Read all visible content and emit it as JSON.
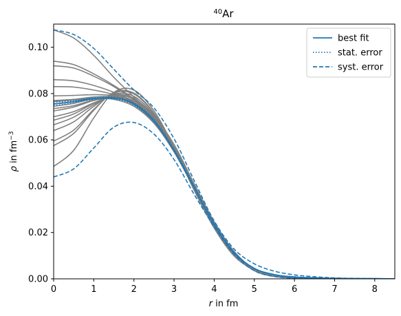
{
  "chart_data": {
    "type": "line",
    "title_sup": "40",
    "title_main": "Ar",
    "xlabel": "r in fm",
    "ylabel": "ρ in fm⁻³",
    "xlim": [
      0,
      8.5
    ],
    "ylim": [
      0,
      0.11
    ],
    "x_ticks": [
      0,
      1,
      2,
      3,
      4,
      5,
      6,
      7,
      8
    ],
    "y_ticks": [
      0.0,
      0.02,
      0.04,
      0.06,
      0.08,
      0.1
    ],
    "y_tick_labels": [
      "0.00",
      "0.02",
      "0.04",
      "0.06",
      "0.08",
      "0.10"
    ],
    "legend_position": "top-right",
    "legend": [
      {
        "label": "best fit",
        "style": "solid"
      },
      {
        "label": "stat. error",
        "style": "dotted"
      },
      {
        "label": "syst. error",
        "style": "dashed"
      }
    ],
    "colors": {
      "primary": "#1f77b4",
      "ensemble": "#808080"
    },
    "best_fit": {
      "x": [
        0,
        0.5,
        1,
        1.5,
        2,
        2.5,
        3,
        3.5,
        4,
        4.5,
        5,
        5.5,
        6,
        6.5,
        7,
        7.5,
        8,
        8.5
      ],
      "y": [
        0.0755,
        0.0765,
        0.0778,
        0.078,
        0.0755,
        0.0682,
        0.0555,
        0.0395,
        0.0235,
        0.0112,
        0.0045,
        0.0018,
        0.0008,
        0.0004,
        0.0002,
        0.0001,
        0.0001,
        0.0
      ]
    },
    "stat_error_lower": {
      "x": [
        0,
        0.5,
        1,
        1.5,
        2,
        2.5,
        3,
        3.5,
        4,
        4.5,
        5,
        5.5,
        6,
        6.5,
        7,
        7.5,
        8,
        8.5
      ],
      "y": [
        0.0748,
        0.076,
        0.0774,
        0.0776,
        0.075,
        0.0677,
        0.055,
        0.039,
        0.0231,
        0.011,
        0.0044,
        0.0017,
        0.0007,
        0.0003,
        0.0002,
        0.0001,
        0.0,
        0.0
      ]
    },
    "stat_error_upper": {
      "x": [
        0,
        0.5,
        1,
        1.5,
        2,
        2.5,
        3,
        3.5,
        4,
        4.5,
        5,
        5.5,
        6,
        6.5,
        7,
        7.5,
        8,
        8.5
      ],
      "y": [
        0.0762,
        0.077,
        0.0782,
        0.0784,
        0.076,
        0.0687,
        0.056,
        0.04,
        0.0239,
        0.0114,
        0.0046,
        0.0019,
        0.0009,
        0.0005,
        0.0003,
        0.0001,
        0.0001,
        0.0
      ]
    },
    "syst_error_upper": {
      "x": [
        0,
        0.5,
        1,
        1.5,
        2,
        2.5,
        3,
        3.5,
        4,
        4.5,
        5,
        5.5,
        6,
        6.5,
        7,
        7.5,
        8,
        8.5
      ],
      "y": [
        0.1075,
        0.1055,
        0.0995,
        0.0905,
        0.0815,
        0.0738,
        0.0605,
        0.0425,
        0.025,
        0.0128,
        0.0065,
        0.0033,
        0.0017,
        0.0009,
        0.0004,
        0.0002,
        0.0001,
        0.0
      ]
    },
    "syst_error_lower": {
      "x": [
        0,
        0.5,
        1,
        1.5,
        2,
        2.5,
        3,
        3.5,
        4,
        4.5,
        5,
        5.5,
        6,
        6.5,
        7,
        7.5,
        8,
        8.5
      ],
      "y": [
        0.044,
        0.0475,
        0.0565,
        0.0655,
        0.0675,
        0.0625,
        0.0515,
        0.0365,
        0.0225,
        0.0105,
        0.0035,
        0.001,
        0.0003,
        0.0001,
        0.0,
        0.0,
        0.0,
        0.0
      ]
    },
    "ensemble": [
      {
        "x": [
          0,
          0.5,
          1,
          1.5,
          2,
          2.5,
          3,
          3.5,
          4,
          4.5,
          5,
          5.5,
          6,
          6.5,
          7
        ],
        "y": [
          0.1075,
          0.104,
          0.0965,
          0.087,
          0.0785,
          0.0705,
          0.058,
          0.041,
          0.024,
          0.0105,
          0.0035,
          0.001,
          0.0003,
          0.0001,
          0.0
        ]
      },
      {
        "x": [
          0,
          0.5,
          1,
          1.5,
          2,
          2.5,
          3,
          3.5,
          4,
          4.5,
          5,
          5.5,
          6,
          6.5,
          7
        ],
        "y": [
          0.094,
          0.0925,
          0.0885,
          0.0835,
          0.0775,
          0.069,
          0.057,
          0.041,
          0.0245,
          0.0115,
          0.0042,
          0.0014,
          0.0004,
          0.0001,
          0.0
        ]
      },
      {
        "x": [
          0,
          0.5,
          1,
          1.5,
          2,
          2.5,
          3,
          3.5,
          4,
          4.5,
          5,
          5.5,
          6,
          6.5,
          7
        ],
        "y": [
          0.092,
          0.091,
          0.0875,
          0.083,
          0.0772,
          0.0688,
          0.0568,
          0.0408,
          0.0244,
          0.0114,
          0.0041,
          0.0013,
          0.0004,
          0.0001,
          0.0
        ]
      },
      {
        "x": [
          0,
          0.5,
          1,
          1.5,
          2,
          2.5,
          3,
          3.5,
          4,
          4.5,
          5,
          5.5,
          6,
          6.5,
          7
        ],
        "y": [
          0.086,
          0.0855,
          0.0835,
          0.0805,
          0.0762,
          0.0684,
          0.0566,
          0.0407,
          0.0243,
          0.0113,
          0.004,
          0.0013,
          0.0004,
          0.0001,
          0.0
        ]
      },
      {
        "x": [
          0,
          0.5,
          1,
          1.5,
          2,
          2.5,
          3,
          3.5,
          4,
          4.5,
          5,
          5.5,
          6,
          6.5,
          7
        ],
        "y": [
          0.083,
          0.0828,
          0.0815,
          0.0795,
          0.0757,
          0.0682,
          0.0565,
          0.0406,
          0.0242,
          0.0112,
          0.004,
          0.0013,
          0.0004,
          0.0001,
          0.0
        ]
      },
      {
        "x": [
          0,
          0.5,
          1,
          1.5,
          2,
          2.5,
          3,
          3.5,
          4,
          4.5,
          5,
          5.5,
          6,
          6.5,
          7
        ],
        "y": [
          0.079,
          0.0792,
          0.0795,
          0.079,
          0.0758,
          0.0684,
          0.0562,
          0.0401,
          0.0239,
          0.0111,
          0.004,
          0.0013,
          0.0004,
          0.0001,
          0.0
        ]
      },
      {
        "x": [
          0,
          0.5,
          1,
          1.5,
          2,
          2.5,
          3,
          3.5,
          4,
          4.5,
          5,
          5.5,
          6,
          6.5,
          7
        ],
        "y": [
          0.077,
          0.0775,
          0.0785,
          0.0785,
          0.0756,
          0.0683,
          0.0558,
          0.0398,
          0.0237,
          0.011,
          0.004,
          0.0013,
          0.0004,
          0.0001,
          0.0
        ]
      },
      {
        "x": [
          0,
          0.5,
          1,
          1.5,
          2,
          2.5,
          3,
          3.5,
          4,
          4.5,
          5,
          5.5,
          6,
          6.5,
          7
        ],
        "y": [
          0.0735,
          0.0748,
          0.0772,
          0.0782,
          0.0758,
          0.0682,
          0.0552,
          0.039,
          0.0232,
          0.011,
          0.0043,
          0.0014,
          0.0004,
          0.0001,
          0.0
        ]
      },
      {
        "x": [
          0,
          0.5,
          1,
          1.5,
          2,
          2.5,
          3,
          3.5,
          4,
          4.5,
          5,
          5.5,
          6,
          6.5,
          7
        ],
        "y": [
          0.0725,
          0.0742,
          0.077,
          0.0785,
          0.0762,
          0.0686,
          0.0554,
          0.039,
          0.023,
          0.0107,
          0.0041,
          0.0013,
          0.0004,
          0.0001,
          0.0
        ]
      },
      {
        "x": [
          0,
          0.5,
          1,
          1.5,
          2,
          2.5,
          3,
          3.5,
          4,
          4.5,
          5,
          5.5,
          6,
          6.5,
          7
        ],
        "y": [
          0.07,
          0.0722,
          0.076,
          0.0788,
          0.0768,
          0.069,
          0.0555,
          0.039,
          0.0228,
          0.0105,
          0.004,
          0.0013,
          0.0004,
          0.0001,
          0.0
        ]
      },
      {
        "x": [
          0,
          0.5,
          1,
          1.5,
          2,
          2.5,
          3,
          3.5,
          4,
          4.5,
          5,
          5.5,
          6,
          6.5,
          7
        ],
        "y": [
          0.0685,
          0.0712,
          0.0758,
          0.0792,
          0.0775,
          0.0695,
          0.0556,
          0.0388,
          0.0226,
          0.0104,
          0.004,
          0.0013,
          0.0004,
          0.0001,
          0.0
        ]
      },
      {
        "x": [
          0,
          0.5,
          1,
          1.5,
          2,
          2.5,
          3,
          3.5,
          4,
          4.5,
          5,
          5.5,
          6,
          6.5,
          7
        ],
        "y": [
          0.0665,
          0.0698,
          0.0752,
          0.0795,
          0.078,
          0.0698,
          0.0557,
          0.0387,
          0.0225,
          0.0103,
          0.004,
          0.0013,
          0.0004,
          0.0001,
          0.0
        ]
      },
      {
        "x": [
          0,
          0.5,
          1,
          1.5,
          2,
          2.5,
          3,
          3.5,
          4,
          4.5,
          5,
          5.5,
          6,
          6.5,
          7
        ],
        "y": [
          0.064,
          0.0678,
          0.0745,
          0.0798,
          0.0788,
          0.0705,
          0.056,
          0.0386,
          0.0223,
          0.0102,
          0.004,
          0.0013,
          0.0004,
          0.0001,
          0.0
        ]
      },
      {
        "x": [
          0,
          0.5,
          1,
          1.5,
          2,
          2.5,
          3,
          3.5,
          4,
          4.5,
          5,
          5.5,
          6,
          6.5,
          7
        ],
        "y": [
          0.0595,
          0.0642,
          0.0732,
          0.0802,
          0.0798,
          0.0712,
          0.0562,
          0.0385,
          0.0222,
          0.0101,
          0.004,
          0.0013,
          0.0004,
          0.0001,
          0.0
        ]
      },
      {
        "x": [
          0,
          0.5,
          1,
          1.5,
          2,
          2.5,
          3,
          3.5,
          4,
          4.5,
          5,
          5.5,
          6,
          6.5,
          7
        ],
        "y": [
          0.0575,
          0.0628,
          0.0728,
          0.0805,
          0.0802,
          0.0715,
          0.0563,
          0.0384,
          0.0221,
          0.01,
          0.004,
          0.0013,
          0.0004,
          0.0001,
          0.0
        ]
      },
      {
        "x": [
          0,
          0.5,
          1,
          1.5,
          2,
          2.5,
          3,
          3.5,
          4,
          4.5,
          5,
          5.5,
          6,
          6.5,
          7
        ],
        "y": [
          0.0485,
          0.0555,
          0.0695,
          0.0805,
          0.0815,
          0.0725,
          0.0568,
          0.0383,
          0.0219,
          0.0098,
          0.0039,
          0.0013,
          0.0004,
          0.0001,
          0.0
        ]
      },
      {
        "x": [
          0,
          0.5,
          1,
          1.5,
          2,
          2.5,
          3,
          3.5,
          4,
          4.5,
          5,
          5.5,
          6,
          6.5,
          7
        ],
        "y": [
          0.0765,
          0.0772,
          0.078,
          0.0775,
          0.0745,
          0.0672,
          0.055,
          0.0398,
          0.0245,
          0.0118,
          0.0042,
          0.0013,
          0.0004,
          0.0001,
          0.0
        ]
      },
      {
        "x": [
          0,
          0.5,
          1,
          1.5,
          2,
          2.5,
          3,
          3.5,
          4,
          4.5,
          5,
          5.5,
          6,
          6.5,
          7
        ],
        "y": [
          0.0745,
          0.0758,
          0.0778,
          0.0782,
          0.0752,
          0.0675,
          0.0548,
          0.0392,
          0.024,
          0.0116,
          0.0042,
          0.0013,
          0.0004,
          0.0001,
          0.0
        ]
      }
    ]
  }
}
